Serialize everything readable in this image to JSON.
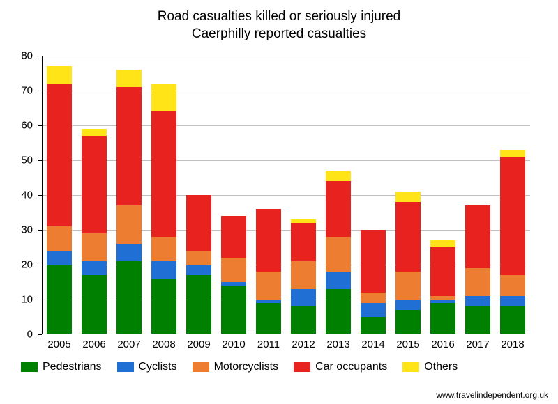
{
  "chart": {
    "type": "stacked-bar",
    "title_line1": "Road casualties killed or seriously injured",
    "title_line2": "Caerphilly reported casualties",
    "title_fontsize": 19,
    "axis_label_fontsize": 15,
    "legend_fontsize": 16,
    "background_color": "#ffffff",
    "grid_color": "#c0c0c0",
    "axis_color": "#000000",
    "ylim": [
      0,
      80
    ],
    "ytick_step": 10,
    "categories": [
      "2005",
      "2006",
      "2007",
      "2008",
      "2009",
      "2010",
      "2011",
      "2012",
      "2013",
      "2014",
      "2015",
      "2016",
      "2017",
      "2018"
    ],
    "series": [
      {
        "name": "Pedestrians",
        "color": "#008000"
      },
      {
        "name": "Cyclists",
        "color": "#1f6fd4"
      },
      {
        "name": "Motorcyclists",
        "color": "#ed7d31"
      },
      {
        "name": "Car occupants",
        "color": "#e8231f"
      },
      {
        "name": "Others",
        "color": "#ffe417"
      }
    ],
    "values": [
      [
        20,
        4,
        7,
        41,
        5
      ],
      [
        17,
        4,
        8,
        28,
        2
      ],
      [
        21,
        5,
        11,
        34,
        5
      ],
      [
        16,
        5,
        7,
        36,
        8
      ],
      [
        17,
        3,
        4,
        16,
        0
      ],
      [
        14,
        1,
        7,
        12,
        0
      ],
      [
        9,
        1,
        8,
        18,
        0
      ],
      [
        8,
        5,
        8,
        11,
        1
      ],
      [
        13,
        5,
        10,
        16,
        3
      ],
      [
        5,
        4,
        3,
        18,
        0
      ],
      [
        7,
        3,
        8,
        20,
        3
      ],
      [
        9,
        1,
        1,
        14,
        2
      ],
      [
        8,
        3,
        8,
        18,
        0
      ],
      [
        8,
        3,
        6,
        34,
        2
      ]
    ],
    "bar_width_ratio": 0.72,
    "attribution": "www.travelindependent.org.uk"
  }
}
